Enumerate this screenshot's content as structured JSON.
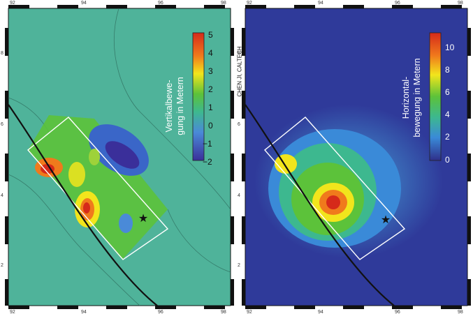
{
  "credit": "CHEN JI, CALTECH",
  "left_map": {
    "legend_title_line1": "Vertikalbewe-",
    "legend_title_line2": "gung in Metern",
    "scale_ticks": [
      "5",
      "4",
      "3",
      "2",
      "1",
      "0",
      "−1",
      "−2"
    ],
    "x_ticks": [
      "92",
      "94",
      "96",
      "98"
    ],
    "y_ticks": [
      "8",
      "6",
      "4",
      "2"
    ]
  },
  "right_map": {
    "legend_title_line1": "Horizontal-",
    "legend_title_line2": "bewegung in Metern",
    "scale_ticks": [
      "10",
      "8",
      "6",
      "4",
      "2",
      "0"
    ],
    "x_ticks": [
      "92",
      "94",
      "96",
      "98"
    ],
    "y_ticks": [
      "8",
      "6",
      "4",
      "2"
    ]
  },
  "colors": {
    "left_background": "#4fb39a",
    "right_background": "#2f3a9a",
    "rupture_box": "#ffffff",
    "fault_line": "#111111"
  },
  "icons": [
    "epicenter-star-icon"
  ]
}
